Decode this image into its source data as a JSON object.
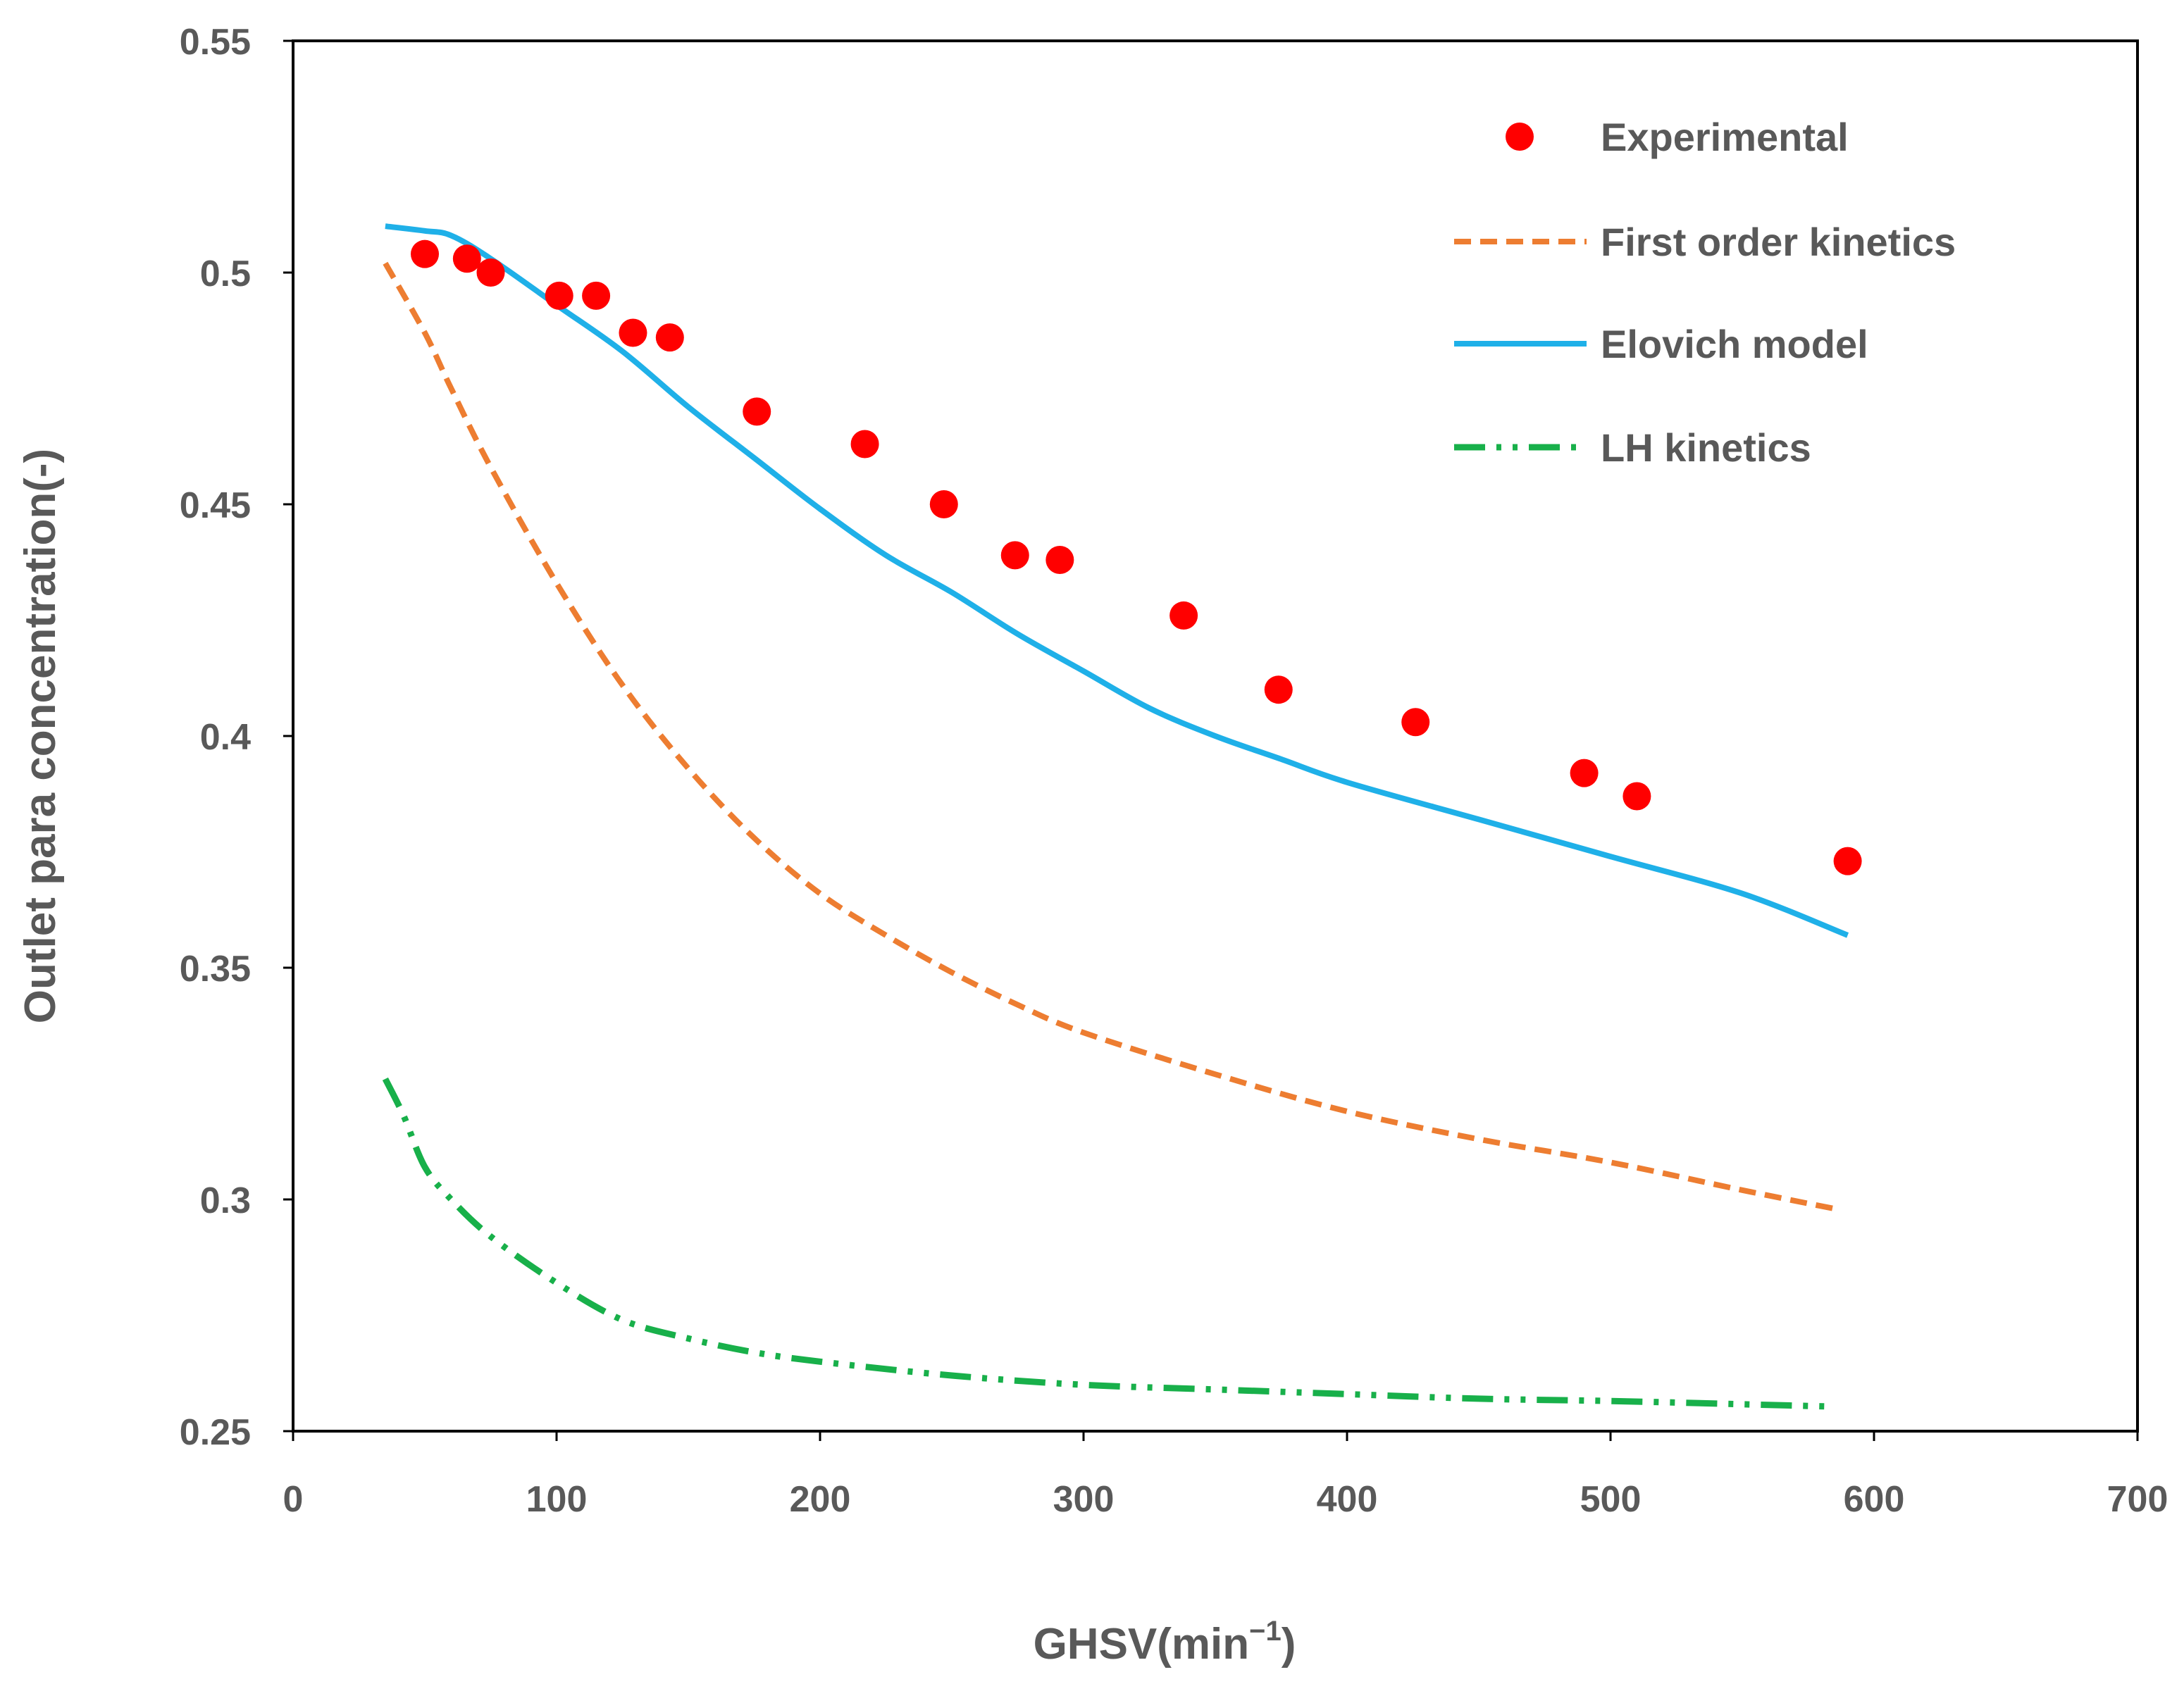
{
  "chart_data": {
    "type": "scatter+line",
    "title": "",
    "xlabel_base": "GHSV(min",
    "xlabel_sup": "−1",
    "xlabel_close": ")",
    "ylabel": "Outlet para concentration(-)",
    "xlim": [
      0,
      700
    ],
    "ylim": [
      0.25,
      0.55
    ],
    "x_ticks": [
      0,
      100,
      200,
      300,
      400,
      500,
      600,
      700
    ],
    "x_tick_labels": [
      "0",
      "100",
      "200",
      "300",
      "400",
      "500",
      "600",
      "700"
    ],
    "y_ticks": [
      0.25,
      0.3,
      0.35,
      0.4,
      0.45,
      0.5,
      0.55
    ],
    "y_tick_labels": [
      "0.25",
      "0.3",
      "0.35",
      "0.4",
      "0.45",
      "0.5",
      "0.55"
    ],
    "grid": false,
    "legend_position": "top-right",
    "series": [
      {
        "name": "Experimental",
        "kind": "scatter",
        "color": "#ff0000",
        "points": [
          [
            50,
            0.504
          ],
          [
            66,
            0.503
          ],
          [
            75,
            0.5
          ],
          [
            101,
            0.495
          ],
          [
            115,
            0.495
          ],
          [
            129,
            0.487
          ],
          [
            143,
            0.486
          ],
          [
            176,
            0.47
          ],
          [
            217,
            0.463
          ],
          [
            247,
            0.45
          ],
          [
            274,
            0.439
          ],
          [
            291,
            0.438
          ],
          [
            338,
            0.426
          ],
          [
            374,
            0.41
          ],
          [
            426,
            0.403
          ],
          [
            490,
            0.392
          ],
          [
            510,
            0.387
          ],
          [
            590,
            0.373
          ]
        ]
      },
      {
        "name": "First order kinetics",
        "kind": "line",
        "style": "dashed",
        "color": "#ed7d31",
        "points": [
          [
            35,
            0.502
          ],
          [
            50,
            0.487
          ],
          [
            60,
            0.475
          ],
          [
            75,
            0.458
          ],
          [
            100,
            0.433
          ],
          [
            125,
            0.411
          ],
          [
            150,
            0.393
          ],
          [
            175,
            0.378
          ],
          [
            200,
            0.366
          ],
          [
            225,
            0.357
          ],
          [
            250,
            0.349
          ],
          [
            275,
            0.342
          ],
          [
            300,
            0.336
          ],
          [
            350,
            0.327
          ],
          [
            400,
            0.319
          ],
          [
            450,
            0.313
          ],
          [
            500,
            0.308
          ],
          [
            550,
            0.302
          ],
          [
            585,
            0.298
          ]
        ]
      },
      {
        "name": "Elovich model",
        "kind": "line",
        "style": "solid",
        "color": "#1fb0e8",
        "points": [
          [
            35,
            0.51
          ],
          [
            50,
            0.509
          ],
          [
            60,
            0.508
          ],
          [
            75,
            0.503
          ],
          [
            100,
            0.493
          ],
          [
            125,
            0.483
          ],
          [
            150,
            0.471
          ],
          [
            175,
            0.46
          ],
          [
            200,
            0.449
          ],
          [
            225,
            0.439
          ],
          [
            250,
            0.431
          ],
          [
            275,
            0.422
          ],
          [
            300,
            0.414
          ],
          [
            325,
            0.406
          ],
          [
            350,
            0.4
          ],
          [
            375,
            0.395
          ],
          [
            400,
            0.39
          ],
          [
            450,
            0.382
          ],
          [
            500,
            0.374
          ],
          [
            550,
            0.366
          ],
          [
            590,
            0.357
          ]
        ]
      },
      {
        "name": "LH kinetics",
        "kind": "line",
        "style": "dash-dot-dot",
        "color": "#18b04a",
        "points": [
          [
            35,
            0.326
          ],
          [
            42,
            0.318
          ],
          [
            50,
            0.307
          ],
          [
            60,
            0.3
          ],
          [
            75,
            0.292
          ],
          [
            100,
            0.282
          ],
          [
            125,
            0.274
          ],
          [
            150,
            0.27
          ],
          [
            175,
            0.267
          ],
          [
            200,
            0.265
          ],
          [
            250,
            0.262
          ],
          [
            300,
            0.26
          ],
          [
            350,
            0.259
          ],
          [
            400,
            0.258
          ],
          [
            450,
            0.257
          ],
          [
            500,
            0.2565
          ],
          [
            550,
            0.2558
          ],
          [
            585,
            0.2553
          ]
        ]
      }
    ]
  }
}
